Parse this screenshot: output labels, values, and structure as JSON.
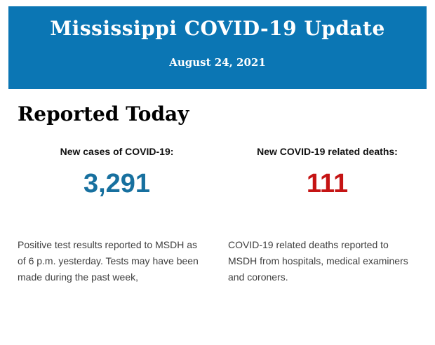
{
  "header": {
    "title": "Mississippi COVID-19 Update",
    "date": "August 24, 2021",
    "background": "#0b76b4"
  },
  "section": {
    "heading": "Reported Today"
  },
  "stats": {
    "cases": {
      "label": "New cases of COVID-19:",
      "value": "3,291",
      "color": "#17709f",
      "description": "Positive test results reported to MSDH as\nof 6 p.m. yesterday. Tests may have been\nmade during the past week,"
    },
    "deaths": {
      "label": "New COVID-19 related deaths:",
      "value": "111",
      "color": "#c51414",
      "description": "COVID-19 related deaths reported to\nMSDH from hospitals, medical examiners\nand coroners."
    }
  }
}
